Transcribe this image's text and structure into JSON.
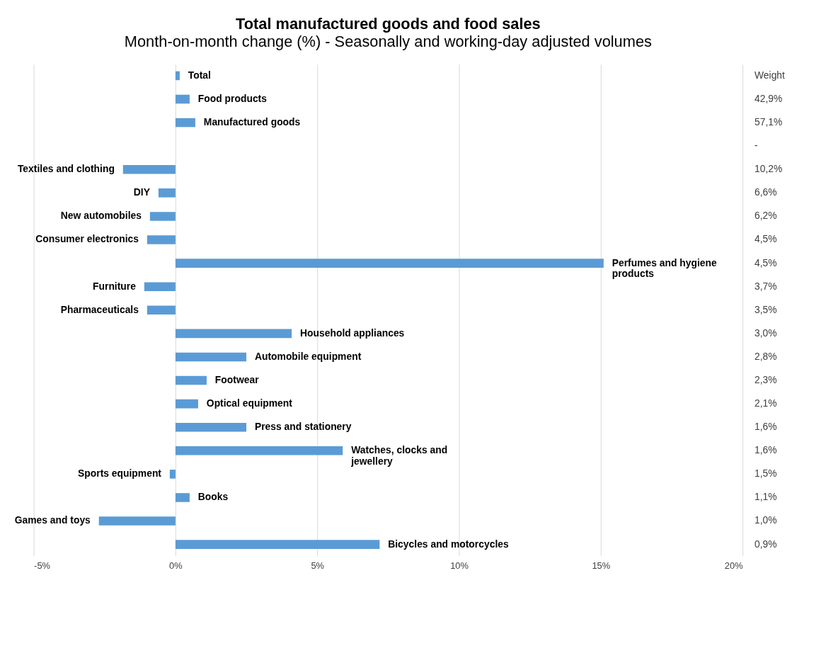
{
  "chart_data": {
    "type": "bar",
    "orientation": "horizontal",
    "title": "Total manufactured goods and food sales",
    "subtitle": "Month-on-month change (%) - Seasonally and working-day adjusted volumes",
    "categories": [
      "Total",
      "Food products",
      "Manufactured goods",
      null,
      "Textiles and clothing",
      "DIY",
      "New automobiles",
      "Consumer electronics",
      "Perfumes and hygiene products",
      "Furniture",
      "Pharmaceuticals",
      "Household appliances",
      "Automobile equipment",
      "Footwear",
      "Optical equipment",
      "Press and stationery",
      "Watches, clocks and jewellery",
      "Sports equipment",
      "Books",
      "Games and toys",
      "Bicycles and motorcycles"
    ],
    "y2_categories": [
      "Weight",
      "42,9%",
      "57,1%",
      "-",
      "10,2%",
      "6,6%",
      "6,2%",
      "4,5%",
      "4,5%",
      "3,7%",
      "3,5%",
      "3,0%",
      "2,8%",
      "2,3%",
      "2,1%",
      "1,6%",
      "1,6%",
      "1,5%",
      "1,1%",
      "1,0%",
      "0,9%"
    ],
    "values": [
      0.15,
      0.5,
      0.7,
      null,
      -1.85,
      -0.6,
      -0.9,
      -1.0,
      15.1,
      -1.1,
      -1.0,
      4.1,
      2.5,
      1.1,
      0.8,
      2.5,
      5.9,
      -0.2,
      0.5,
      -2.7,
      7.2
    ],
    "color": "#5b9bd5",
    "xlim": [
      -5,
      20
    ],
    "xticks": [
      {
        "value": -5,
        "label": "-5%"
      },
      {
        "value": 0,
        "label": "0%"
      },
      {
        "value": 5,
        "label": "5%"
      },
      {
        "value": 10,
        "label": "10%"
      },
      {
        "value": 15,
        "label": "15%"
      },
      {
        "value": 20,
        "label": "20%"
      }
    ],
    "grid": "x",
    "tick_labels": "x"
  }
}
